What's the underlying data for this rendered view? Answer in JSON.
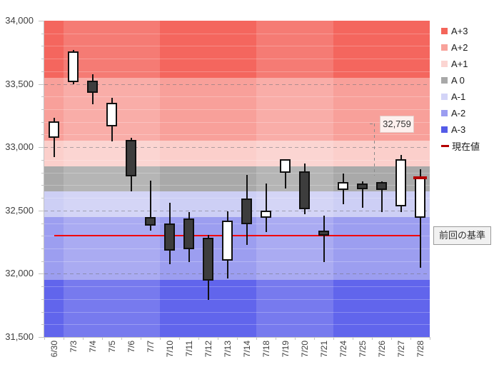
{
  "chart_data": {
    "type": "candlestick",
    "y_axis": {
      "min": 31500,
      "max": 34000,
      "major_step": 500,
      "minor_step": 100,
      "ticks": [
        {
          "value": 34000,
          "label": "34,000"
        },
        {
          "value": 33500,
          "label": "33,500"
        },
        {
          "value": 33000,
          "label": "33,000"
        },
        {
          "value": 32500,
          "label": "32,500"
        },
        {
          "value": 32000,
          "label": "32,000"
        },
        {
          "value": 31500,
          "label": "31,500"
        }
      ]
    },
    "categories": [
      "6/30",
      "7/3",
      "7/4",
      "7/5",
      "7/6",
      "7/7",
      "7/10",
      "7/11",
      "7/12",
      "7/13",
      "7/14",
      "7/18",
      "7/19",
      "7/20",
      "7/21",
      "7/24",
      "7/25",
      "7/26",
      "7/27",
      "7/28"
    ],
    "candles": [
      {
        "date": "6/30",
        "open": 33075,
        "high": 33230,
        "low": 32920,
        "close": 33205,
        "dir": "up"
      },
      {
        "date": "7/3",
        "open": 33515,
        "high": 33770,
        "low": 33500,
        "close": 33755,
        "dir": "up"
      },
      {
        "date": "7/4",
        "open": 33525,
        "high": 33575,
        "low": 33340,
        "close": 33430,
        "dir": "down"
      },
      {
        "date": "7/5",
        "open": 33165,
        "high": 33390,
        "low": 33045,
        "close": 33350,
        "dir": "up"
      },
      {
        "date": "7/6",
        "open": 33060,
        "high": 33075,
        "low": 32650,
        "close": 32770,
        "dir": "down"
      },
      {
        "date": "7/7",
        "open": 32450,
        "high": 32735,
        "low": 32340,
        "close": 32380,
        "dir": "down"
      },
      {
        "date": "7/10",
        "open": 32400,
        "high": 32560,
        "low": 32075,
        "close": 32185,
        "dir": "down"
      },
      {
        "date": "7/11",
        "open": 32435,
        "high": 32490,
        "low": 32090,
        "close": 32195,
        "dir": "down"
      },
      {
        "date": "7/12",
        "open": 32285,
        "high": 32305,
        "low": 31795,
        "close": 31945,
        "dir": "down"
      },
      {
        "date": "7/13",
        "open": 32105,
        "high": 32495,
        "low": 31965,
        "close": 32420,
        "dir": "up"
      },
      {
        "date": "7/14",
        "open": 32595,
        "high": 32780,
        "low": 32230,
        "close": 32390,
        "dir": "down"
      },
      {
        "date": "7/18",
        "open": 32445,
        "high": 32715,
        "low": 32330,
        "close": 32500,
        "dir": "up"
      },
      {
        "date": "7/19",
        "open": 32800,
        "high": 32905,
        "low": 32675,
        "close": 32905,
        "dir": "up"
      },
      {
        "date": "7/20",
        "open": 32810,
        "high": 32870,
        "low": 32470,
        "close": 32510,
        "dir": "down"
      },
      {
        "date": "7/21",
        "open": 32340,
        "high": 32460,
        "low": 32090,
        "close": 32300,
        "dir": "down"
      },
      {
        "date": "7/24",
        "open": 32660,
        "high": 32795,
        "low": 32550,
        "close": 32725,
        "dir": "up"
      },
      {
        "date": "7/25",
        "open": 32715,
        "high": 32730,
        "low": 32520,
        "close": 32670,
        "dir": "down"
      },
      {
        "date": "7/26",
        "open": 32725,
        "high": 32730,
        "low": 32485,
        "close": 32665,
        "dir": "down"
      },
      {
        "date": "7/27",
        "open": 32530,
        "high": 32940,
        "low": 32490,
        "close": 32905,
        "dir": "up"
      },
      {
        "date": "7/28",
        "open": 32445,
        "high": 32825,
        "low": 32050,
        "close": 32759,
        "dir": "up"
      }
    ],
    "bands": [
      {
        "label": "A+3",
        "from": 33550,
        "to": 34000,
        "color": "#f4665e"
      },
      {
        "label": "A+2",
        "from": 33050,
        "to": 33550,
        "color": "#f8a09a"
      },
      {
        "label": "A+1",
        "from": 32850,
        "to": 33050,
        "color": "#fbcfcb"
      },
      {
        "label": "A 0",
        "from": 32650,
        "to": 32850,
        "color": "#a9a9a9"
      },
      {
        "label": "A-1",
        "from": 32450,
        "to": 32650,
        "color": "#cdcff5"
      },
      {
        "label": "A-2",
        "from": 31950,
        "to": 32450,
        "color": "#9c9ef0"
      },
      {
        "label": "A-3",
        "from": 31500,
        "to": 31950,
        "color": "#6165ec"
      }
    ],
    "light_week_column_ranges": [
      [
        1,
        5
      ],
      [
        11,
        14
      ]
    ],
    "baseline": {
      "value": 32300,
      "label": "前回の基準",
      "color": "#f20202"
    },
    "current": {
      "value": 32759,
      "display": "32,759",
      "color": "#b40000"
    },
    "legend": [
      {
        "label": "A+3",
        "color": "#f4655a",
        "swatch": "square"
      },
      {
        "label": "A+2",
        "color": "#f8a29b",
        "swatch": "square"
      },
      {
        "label": "A+1",
        "color": "#fbd5d2",
        "swatch": "square"
      },
      {
        "label": "A 0",
        "color": "#a8a8a8",
        "swatch": "square"
      },
      {
        "label": "A-1",
        "color": "#d3d4f7",
        "swatch": "square"
      },
      {
        "label": "A-2",
        "color": "#9b9df1",
        "swatch": "square"
      },
      {
        "label": "A-3",
        "color": "#545be8",
        "swatch": "square"
      },
      {
        "label": "現在値",
        "color": "#b40000",
        "swatch": "dash"
      }
    ]
  }
}
